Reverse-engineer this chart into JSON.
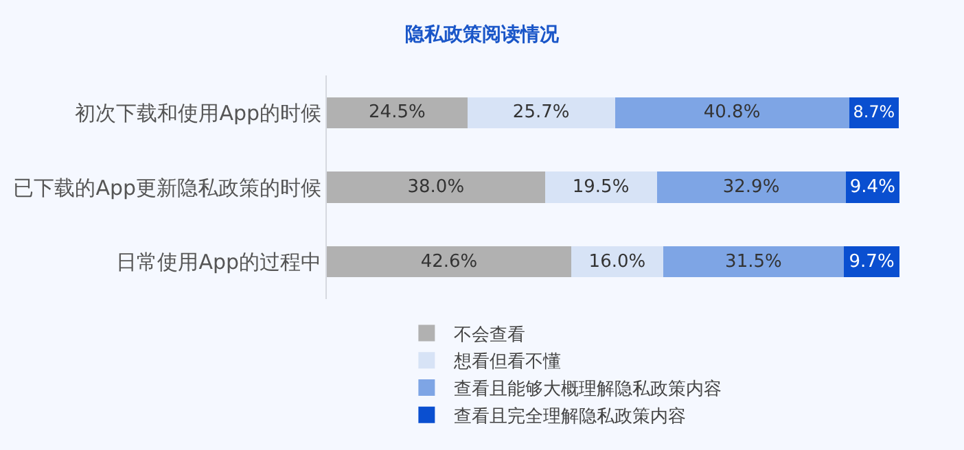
{
  "chart_data": {
    "type": "bar",
    "orientation": "horizontal",
    "stacked": true,
    "title": "隐私政策阅读情况",
    "categories": [
      "初次下载和使用App的时候",
      "已下载的App更新隐私政策的时候",
      "日常使用App的过程中"
    ],
    "series": [
      {
        "name": "不会查看",
        "color": "#b1b1b1",
        "values": [
          24.5,
          38.0,
          42.6
        ],
        "value_labels": [
          "24.5%",
          "38.0%",
          "42.6%"
        ]
      },
      {
        "name": "想看但看不懂",
        "color": "#d7e3f6",
        "values": [
          25.7,
          19.5,
          16.0
        ],
        "value_labels": [
          "25.7%",
          "19.5%",
          "16.0%"
        ]
      },
      {
        "name": "查看且能够大概理解隐私政策内容",
        "color": "#7ea5e5",
        "values": [
          40.8,
          32.9,
          31.5
        ],
        "value_labels": [
          "40.8%",
          "32.9%",
          "31.5%"
        ]
      },
      {
        "name": "查看且完全理解隐私政策内容",
        "color": "#0a4fd0",
        "values": [
          8.7,
          9.4,
          9.7
        ],
        "value_labels": [
          "8.7%",
          "9.4%",
          "9.7%"
        ]
      }
    ],
    "legend": "bottom",
    "grid": false,
    "tick_labels": "y"
  }
}
